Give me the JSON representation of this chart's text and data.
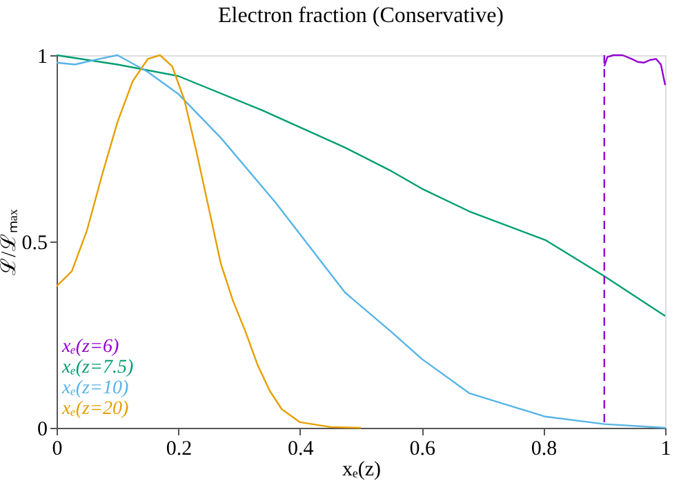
{
  "chart_data": {
    "type": "line",
    "title": "Electron fraction (Conservative)",
    "xlabel": "xₑ(z)",
    "ylabel": "ℒ/ℒₘₐₓ",
    "xlim": [
      0,
      1
    ],
    "ylim": [
      0,
      1
    ],
    "xticks": [
      0,
      0.2,
      0.4,
      0.6,
      0.8,
      1
    ],
    "yticks": [
      0,
      0.5,
      1
    ],
    "grid": false,
    "legend": "bottom left",
    "marker": "none",
    "line_style": "solid",
    "series": [
      {
        "name": "xₑ(z=6)",
        "color": "#9400d3",
        "x": [
          0.9,
          0.905,
          0.915,
          0.93,
          0.945,
          0.955,
          0.965,
          0.975,
          0.985,
          0.993,
          1.0
        ],
        "values": [
          0.97,
          0.995,
          1.0,
          1.0,
          0.99,
          0.982,
          0.98,
          0.987,
          0.99,
          0.975,
          0.92
        ]
      },
      {
        "name": "xₑ(z=7.5)",
        "color": "#009e73",
        "x": [
          0,
          0.1,
          0.2,
          0.338,
          0.474,
          0.55,
          0.6,
          0.678,
          0.803,
          0.9,
          1.0
        ],
        "values": [
          1.0,
          0.975,
          0.944,
          0.852,
          0.752,
          0.689,
          0.642,
          0.581,
          0.504,
          0.407,
          0.3
        ]
      },
      {
        "name": "xₑ(z=10)",
        "color": "#56b4e9",
        "x": [
          0,
          0.03,
          0.07,
          0.1,
          0.15,
          0.2,
          0.27,
          0.36,
          0.474,
          0.549,
          0.6,
          0.678,
          0.803,
          0.9,
          1.0
        ],
        "values": [
          0.98,
          0.975,
          0.99,
          1.0,
          0.955,
          0.896,
          0.778,
          0.604,
          0.363,
          0.259,
          0.185,
          0.093,
          0.03,
          0.01,
          0.0
        ]
      },
      {
        "name": "xₑ(z=20)",
        "color": "#e69f00",
        "x": [
          0,
          0.025,
          0.05,
          0.075,
          0.1,
          0.125,
          0.15,
          0.17,
          0.19,
          0.21,
          0.23,
          0.25,
          0.27,
          0.29,
          0.31,
          0.33,
          0.35,
          0.37,
          0.4,
          0.45,
          0.5
        ],
        "values": [
          0.38,
          0.42,
          0.53,
          0.68,
          0.82,
          0.93,
          0.99,
          1.0,
          0.97,
          0.88,
          0.74,
          0.59,
          0.44,
          0.34,
          0.26,
          0.17,
          0.1,
          0.05,
          0.015,
          0.002,
          0.0
        ]
      }
    ],
    "ref_lines": [
      {
        "axis": "x",
        "value": 0.9,
        "label": null,
        "color": "#9400d3",
        "line_style": "dashed"
      }
    ]
  }
}
